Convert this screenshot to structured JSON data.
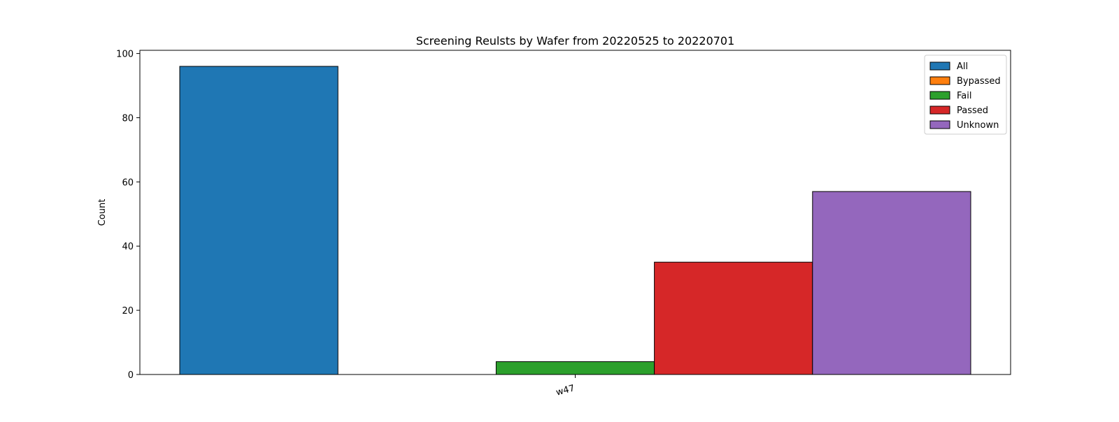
{
  "chart_data": {
    "type": "bar",
    "title": "Screening Reulsts by Wafer from 20220525 to 20220701",
    "xlabel": "",
    "ylabel": "Count",
    "categories": [
      "w47"
    ],
    "ylim": [
      0,
      101
    ],
    "yticks": [
      0,
      20,
      40,
      60,
      80,
      100
    ],
    "grid": false,
    "legend_position": "top-right",
    "series": [
      {
        "name": "All",
        "values": [
          96
        ],
        "color": "#1f77b4"
      },
      {
        "name": "Bypassed",
        "values": [
          0
        ],
        "color": "#ff7f0e"
      },
      {
        "name": "Fail",
        "values": [
          4
        ],
        "color": "#2ca02c"
      },
      {
        "name": "Passed",
        "values": [
          35
        ],
        "color": "#d62728"
      },
      {
        "name": "Unknown",
        "values": [
          57
        ],
        "color": "#9467bd"
      }
    ]
  }
}
